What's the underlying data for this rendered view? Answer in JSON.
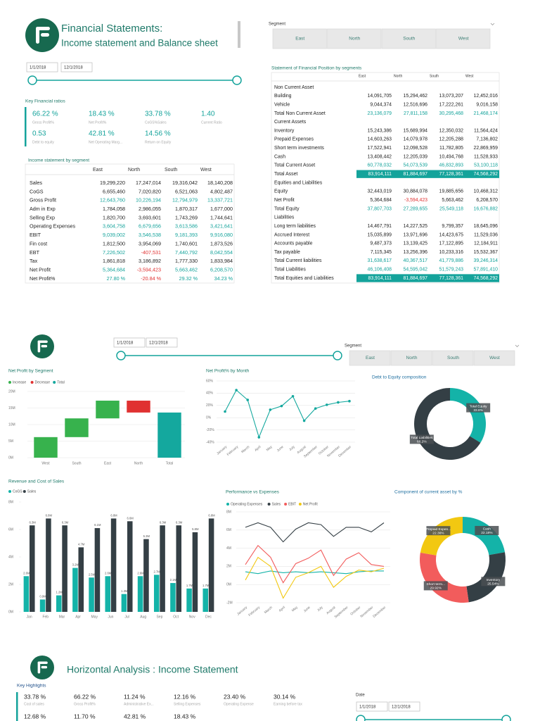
{
  "page1": {
    "title": "Financial Statements:",
    "subtitle": "Income statement and Balance sheet",
    "filters": {
      "date_from": "1/1/2018",
      "date_to": "12/1/2018",
      "segment_label": "Segment",
      "segments": [
        "East",
        "North",
        "South",
        "West"
      ]
    },
    "ratios": {
      "title": "Key Financial ratios",
      "items": [
        {
          "value": "66.22 %",
          "label": "Gross Profit%"
        },
        {
          "value": "18.43 %",
          "label": "Net Profit%"
        },
        {
          "value": "33.78 %",
          "label": "CoGS%Sales"
        },
        {
          "value": "1.40",
          "label": "Current Ratio"
        },
        {
          "value": "0.53",
          "label": "Debt to equity"
        },
        {
          "value": "42.81 %",
          "label": "Net Operating Marg..."
        },
        {
          "value": "14.56 %",
          "label": "Return on Equity"
        }
      ]
    },
    "income_statement": {
      "title": "Income statement by segment",
      "columns": [
        "East",
        "North",
        "South",
        "West"
      ],
      "rows": [
        {
          "label": "Sales",
          "cells": [
            "19,299,220",
            "17,247,014",
            "19,316,042",
            "18,140,208"
          ]
        },
        {
          "label": "CoGS",
          "cells": [
            "6,655,460",
            "7,020,820",
            "6,521,063",
            "4,802,487"
          ]
        },
        {
          "label": "Gross Profit",
          "cells": [
            "12,643,760",
            "10,226,194",
            "12,794,979",
            "13,337,721"
          ],
          "style": "total"
        },
        {
          "label": "Adm in Exp",
          "cells": [
            "1,784,058",
            "2,986,055",
            "1,870,317",
            "1,677,000"
          ]
        },
        {
          "label": "Selling Exp",
          "cells": [
            "1,820,700",
            "3,693,601",
            "1,743,269",
            "1,744,641"
          ]
        },
        {
          "label": "Operating Expenses",
          "cells": [
            "3,604,758",
            "6,679,656",
            "3,613,586",
            "3,421,641"
          ],
          "style": "total"
        },
        {
          "label": "EBIT",
          "cells": [
            "9,039,002",
            "3,546,538",
            "9,181,393",
            "9,916,080"
          ],
          "style": "total"
        },
        {
          "label": "Fin cost",
          "cells": [
            "1,812,500",
            "3,954,069",
            "1,740,601",
            "1,873,526"
          ]
        },
        {
          "label": "EBT",
          "cells": [
            "7,226,502",
            "-407,531",
            "7,440,792",
            "8,042,554"
          ],
          "style": "total"
        },
        {
          "label": "Tax",
          "cells": [
            "1,861,818",
            "3,186,892",
            "1,777,330",
            "1,833,984"
          ]
        },
        {
          "label": "Net Profit",
          "cells": [
            "5,364,684",
            "-3,594,423",
            "5,663,462",
            "6,208,570"
          ],
          "style": "total"
        },
        {
          "label": "Net Profit%",
          "cells": [
            "27.80 %",
            "-20.84 %",
            "29.32 %",
            "34.23 %"
          ],
          "style": "total"
        }
      ]
    },
    "balance_sheet": {
      "title": "Statement of Financial Position by segments",
      "columns": [
        "East",
        "North",
        "South",
        "West"
      ],
      "rows": [
        {
          "label": "Non Current Asset",
          "cells": []
        },
        {
          "label": "Building",
          "cells": [
            "14,091,705",
            "15,294,462",
            "13,073,207",
            "12,452,016"
          ]
        },
        {
          "label": "Vehicle",
          "cells": [
            "9,044,374",
            "12,516,696",
            "17,222,261",
            "9,016,158"
          ]
        },
        {
          "label": "Total Non Current Asset",
          "cells": [
            "23,136,079",
            "27,811,158",
            "30,295,468",
            "21,468,174"
          ],
          "style": "total"
        },
        {
          "label": "Current Assets",
          "cells": []
        },
        {
          "label": "Inventory",
          "cells": [
            "15,243,386",
            "15,689,994",
            "12,350,032",
            "11,564,424"
          ]
        },
        {
          "label": "Prepaid Expenses",
          "cells": [
            "14,603,263",
            "14,079,978",
            "12,205,288",
            "7,136,802"
          ]
        },
        {
          "label": "Short term investments",
          "cells": [
            "17,522,941",
            "12,098,528",
            "11,782,805",
            "22,869,959"
          ]
        },
        {
          "label": "Cash",
          "cells": [
            "13,408,442",
            "12,205,039",
            "10,494,768",
            "11,528,933"
          ]
        },
        {
          "label": "Total Current Asset",
          "cells": [
            "60,778,032",
            "54,073,539",
            "46,832,893",
            "53,100,118"
          ],
          "style": "total"
        },
        {
          "label": "Total Asset",
          "cells": [
            "83,914,111",
            "81,884,697",
            "77,128,361",
            "74,568,292"
          ],
          "style": "grand"
        },
        {
          "label": "Equities and Liabilities",
          "cells": []
        },
        {
          "label": "Equity",
          "cells": [
            "32,443,019",
            "30,884,078",
            "19,885,656",
            "10,468,312"
          ]
        },
        {
          "label": "Net Profit",
          "cells": [
            "5,364,684",
            "-3,594,423",
            "5,663,462",
            "6,208,570"
          ]
        },
        {
          "label": "Total Equity",
          "cells": [
            "37,807,703",
            "27,289,655",
            "25,549,118",
            "16,676,882"
          ],
          "style": "total"
        },
        {
          "label": "Liabilities",
          "cells": []
        },
        {
          "label": "Long term liabilities",
          "cells": [
            "14,467,791",
            "14,227,525",
            "9,799,357",
            "18,645,096"
          ]
        },
        {
          "label": "Accrued Interest",
          "cells": [
            "15,035,899",
            "13,971,696",
            "14,423,675",
            "11,529,036"
          ]
        },
        {
          "label": "Accounts payable",
          "cells": [
            "9,487,373",
            "13,139,425",
            "17,122,895",
            "12,184,911"
          ]
        },
        {
          "label": "Tax payable",
          "cells": [
            "7,115,345",
            "13,256,396",
            "10,233,316",
            "15,532,367"
          ]
        },
        {
          "label": "Total Current liabilities",
          "cells": [
            "31,638,617",
            "40,367,517",
            "41,779,886",
            "39,246,314"
          ],
          "style": "total"
        },
        {
          "label": "Total Liabilities",
          "cells": [
            "46,106,408",
            "54,595,042",
            "51,579,243",
            "57,891,410"
          ],
          "style": "total"
        },
        {
          "label": "Total Equities and Liabilities",
          "cells": [
            "83,914,111",
            "81,884,697",
            "77,128,361",
            "74,568,292"
          ],
          "style": "grand"
        }
      ]
    }
  },
  "page2": {
    "filters": {
      "date_from": "1/1/2018",
      "date_to": "12/1/2018",
      "segment_label": "Segment",
      "segments": [
        "East",
        "North",
        "South",
        "West"
      ]
    }
  },
  "chart_data": [
    {
      "type": "waterfall",
      "title": "Net Profit by Segment",
      "categories": [
        "West",
        "South",
        "East",
        "North",
        "Total"
      ],
      "series": [
        {
          "name": "Increase",
          "color": "#37b24d",
          "values": [
            6.21,
            5.66,
            5.36,
            null,
            null
          ]
        },
        {
          "name": "Decrease",
          "color": "#e03131",
          "values": [
            null,
            null,
            null,
            -3.59,
            null
          ]
        },
        {
          "name": "Total",
          "color": "#14a89e",
          "values": [
            null,
            null,
            null,
            null,
            13.64
          ]
        }
      ],
      "ylim": [
        0,
        20
      ],
      "yticks": [
        {
          "value": 0,
          "label": "0M"
        },
        {
          "value": 5,
          "label": "5M"
        },
        {
          "value": 10,
          "label": "10M"
        },
        {
          "value": 15,
          "label": "15M"
        },
        {
          "value": 20,
          "label": "20M"
        }
      ],
      "grid": true
    },
    {
      "type": "line",
      "title": "Net Profit% by Month",
      "categories": [
        "January",
        "February",
        "March",
        "April",
        "May",
        "June",
        "July",
        "August",
        "September",
        "October",
        "November",
        "December"
      ],
      "values": [
        10,
        45,
        29,
        -32,
        13,
        19,
        35,
        -5,
        15,
        21,
        25,
        27
      ],
      "color": "#14a89e",
      "markers": true,
      "ylim": [
        -40,
        60
      ],
      "yticks": [
        {
          "value": -40,
          "label": "-40%"
        },
        {
          "value": -20,
          "label": "-20%"
        },
        {
          "value": 0,
          "label": "0%"
        },
        {
          "value": 20,
          "label": "20%"
        },
        {
          "value": 40,
          "label": "40%"
        },
        {
          "value": 60,
          "label": "60%"
        }
      ],
      "grid": true
    },
    {
      "type": "donut",
      "title": "Debt to Equity composition",
      "categories": [
        "Total Equity",
        "Total Liabilities"
      ],
      "values": [
        33.8,
        66.2
      ],
      "value_labels": [
        "33.8%",
        "66.2%"
      ],
      "colors": [
        "#14b3a8",
        "#343f45"
      ]
    },
    {
      "type": "bar",
      "title": "Revenue and Cost of Sales",
      "categories": [
        "Jan",
        "Feb",
        "Mar",
        "Apr",
        "May",
        "Jun",
        "Jul",
        "Aug",
        "Sep",
        "Oct",
        "Nov",
        "Dec"
      ],
      "series": [
        {
          "name": "CoGS",
          "color": "#14b3a8",
          "values": [
            2.6,
            0.9,
            1.2,
            3.2,
            2.5,
            2.6,
            1.3,
            2.6,
            2.7,
            2.1,
            1.7,
            1.7
          ],
          "value_labels": [
            "2.6M",
            "0.9M",
            "1.2M",
            "3.2M",
            "2.5M",
            "2.6M",
            "1.3M",
            "2.6M",
            "2.7M",
            "2.1M",
            "1.7M",
            "1.7M"
          ]
        },
        {
          "name": "Sales",
          "color": "#343f45",
          "values": [
            6.3,
            6.8,
            6.3,
            4.7,
            6.1,
            6.8,
            6.6,
            5.3,
            6.3,
            6.3,
            5.8,
            6.8
          ],
          "value_labels": [
            "6.3M",
            "6.8M",
            "6.3M",
            "4.7M",
            "6.1M",
            "6.8M",
            "6.6M",
            "5.3M",
            "6.3M",
            "6.3M",
            "5.8M",
            "6.8M"
          ]
        }
      ],
      "ylim": [
        0,
        8
      ],
      "yticks": [
        {
          "value": 0,
          "label": "0M"
        },
        {
          "value": 2,
          "label": "2M"
        },
        {
          "value": 4,
          "label": "4M"
        },
        {
          "value": 6,
          "label": "6M"
        },
        {
          "value": 8,
          "label": "8M"
        }
      ],
      "grid": false
    },
    {
      "type": "line",
      "title": "Performance vs Expenses",
      "categories": [
        "January",
        "February",
        "March",
        "April",
        "May",
        "June",
        "July",
        "August",
        "September",
        "October",
        "November",
        "December"
      ],
      "series": [
        {
          "name": "Operating Expenses",
          "color": "#14b3a8",
          "values": [
            1.4,
            1.2,
            1.5,
            1.3,
            1.4,
            1.3,
            1.4,
            1.3,
            1.2,
            1.4,
            1.5,
            1.5
          ]
        },
        {
          "name": "Sales",
          "color": "#343f45",
          "values": [
            6.3,
            6.8,
            6.3,
            4.7,
            6.1,
            6.8,
            6.6,
            5.3,
            6.3,
            6.3,
            5.8,
            6.8
          ]
        },
        {
          "name": "EBIT",
          "color": "#f25c5c",
          "values": [
            2.2,
            4.3,
            3.0,
            0.2,
            2.3,
            2.9,
            3.8,
            1.0,
            2.8,
            3.5,
            2.2,
            2.0
          ]
        },
        {
          "name": "Net Profit",
          "color": "#f2c811",
          "values": [
            0.5,
            3.0,
            2.0,
            -1.5,
            0.8,
            1.3,
            2.0,
            -0.3,
            0.9,
            1.6,
            1.4,
            1.8
          ]
        }
      ],
      "ylim": [
        -2,
        8
      ],
      "yticks": [
        {
          "value": -2,
          "label": "-2M"
        },
        {
          "value": 0,
          "label": "0M"
        },
        {
          "value": 2,
          "label": "2M"
        },
        {
          "value": 4,
          "label": "4M"
        },
        {
          "value": 6,
          "label": "6M"
        },
        {
          "value": 8,
          "label": "8M"
        }
      ],
      "grid": true
    },
    {
      "type": "donut",
      "title": "Component of current asset by %",
      "categories": [
        "Cash",
        "Inventory",
        "Short term...",
        "Prepaid Expen..."
      ],
      "values": [
        22.18,
        25.54,
        29.92,
        22.36
      ],
      "value_labels": [
        "22.18%",
        "25.54%",
        "29.92%",
        "22.36%"
      ],
      "colors": [
        "#14b3a8",
        "#343f45",
        "#f25c5c",
        "#f2c811"
      ]
    }
  ],
  "page3": {
    "title": "Horizontal Analysis : Income Statement",
    "highlights": {
      "title": "Key Highlights",
      "items": [
        {
          "value": "33.78 %",
          "label": "Cost of sales"
        },
        {
          "value": "66.22 %",
          "label": "Gross Profit%"
        },
        {
          "value": "11.24 %",
          "label": "Administrative Ex..."
        },
        {
          "value": "12.16 %",
          "label": "Selling Expenses"
        },
        {
          "value": "23.40 %",
          "label": "Operating Expense"
        },
        {
          "value": "30.14 %",
          "label": "Earning before tax"
        },
        {
          "value": "12.68 %"
        },
        {
          "value": "11.70 %"
        },
        {
          "value": "42.81 %"
        },
        {
          "value": "18.43 %"
        }
      ]
    },
    "filters": {
      "date_label": "Date",
      "date_from": "1/1/2018",
      "date_to": "12/1/2018"
    }
  }
}
